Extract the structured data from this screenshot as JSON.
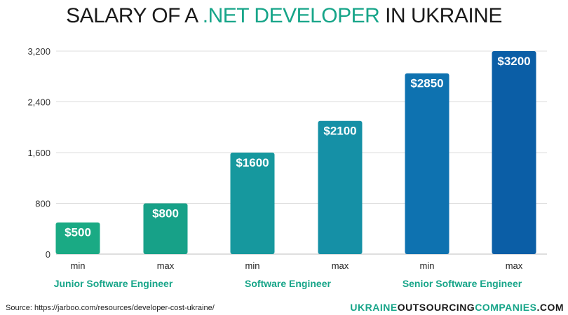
{
  "title": {
    "part1": "SALARY OF A ",
    "accent": ".NET DEVELOPER",
    "part2": " IN UKRAINE"
  },
  "chart_data": {
    "type": "bar",
    "categories": [
      "min",
      "max",
      "min",
      "max",
      "min",
      "max"
    ],
    "values": [
      500,
      800,
      1600,
      2100,
      2850,
      3200
    ],
    "value_labels": [
      "$500",
      "$800",
      "$1600",
      "$2100",
      "$2850",
      "$3200"
    ],
    "groups": [
      "Junior Software Engineer",
      "Software Engineer",
      "Senior Software Engineer"
    ],
    "ylim": [
      0,
      3200
    ],
    "yticks": [
      0,
      800,
      1600,
      2400,
      3200
    ],
    "ytick_labels": [
      "0",
      "800",
      "1,600",
      "2,400",
      "3,200"
    ],
    "grid": true,
    "colors": [
      "#1aaa84",
      "#17a188",
      "#16989e",
      "#1590a6",
      "#0e72b0",
      "#0b5ea6"
    ],
    "group_label_color": "#17a589"
  },
  "footer": {
    "source": "Source: https://jarboo.com/resources/developer-cost-ukraine/",
    "brand_part1": "UKRAINE",
    "brand_part2": "OUTSOURCING",
    "brand_part3": "COMPANIES",
    "brand_part4": ".COM"
  }
}
